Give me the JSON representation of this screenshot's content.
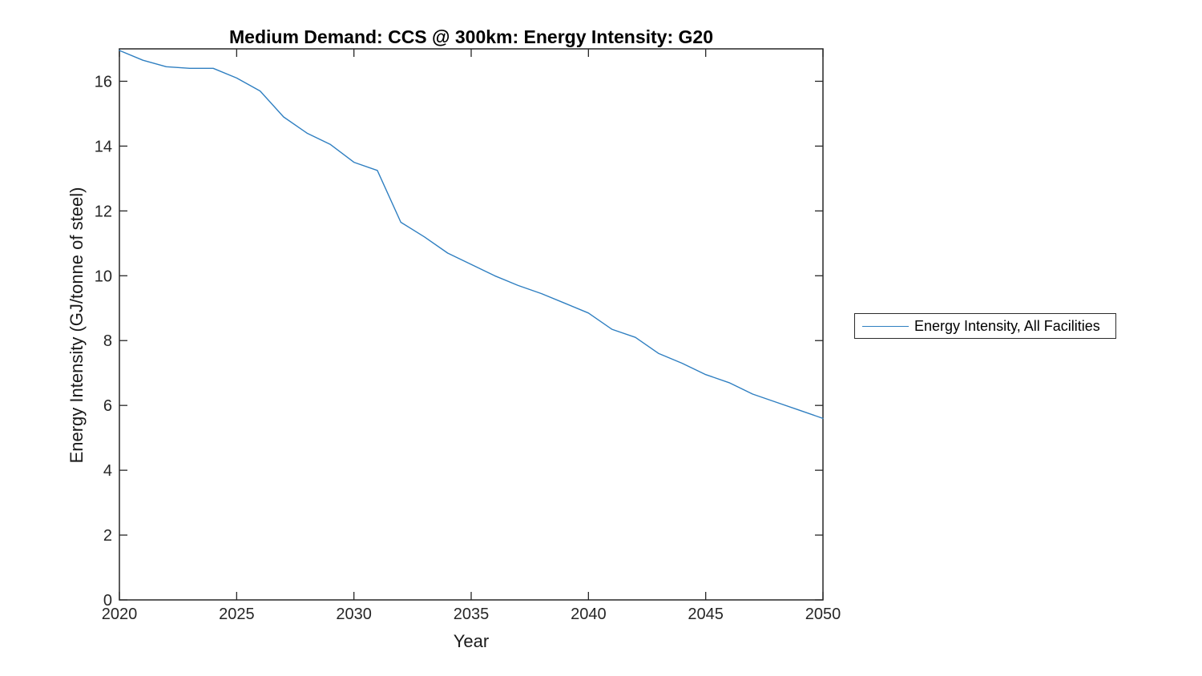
{
  "chart_data": {
    "type": "line",
    "title": "Medium Demand: CCS @ 300km: Energy Intensity: G20",
    "xlabel": "Year",
    "ylabel": "Energy Intensity (GJ/tonne of steel)",
    "xlim": [
      2020,
      2050
    ],
    "ylim": [
      0,
      17
    ],
    "x_ticks": [
      2020,
      2025,
      2030,
      2035,
      2040,
      2045,
      2050
    ],
    "y_ticks": [
      0,
      2,
      4,
      6,
      8,
      10,
      12,
      14,
      16
    ],
    "grid": false,
    "legend_position": "outside-right",
    "series": [
      {
        "name": "Energy Intensity, All Facilities",
        "color": "#2f7fc1",
        "x": [
          2020,
          2021,
          2022,
          2023,
          2024,
          2025,
          2026,
          2027,
          2028,
          2029,
          2030,
          2031,
          2032,
          2033,
          2034,
          2035,
          2036,
          2037,
          2038,
          2039,
          2040,
          2041,
          2042,
          2043,
          2044,
          2045,
          2046,
          2047,
          2048,
          2049,
          2050
        ],
        "values": [
          16.95,
          16.65,
          16.45,
          16.4,
          16.4,
          16.1,
          15.7,
          14.9,
          14.4,
          14.05,
          13.5,
          13.25,
          11.65,
          11.2,
          10.7,
          10.35,
          10.0,
          9.7,
          9.45,
          9.15,
          8.85,
          8.35,
          8.1,
          7.6,
          7.3,
          6.95,
          6.7,
          6.35,
          6.1,
          5.85,
          5.6
        ]
      }
    ]
  },
  "legend": {
    "entries": [
      {
        "label": "Energy Intensity, All Facilities",
        "color": "#2f7fc1"
      }
    ]
  },
  "colors": {
    "line": "#2f7fc1",
    "axis": "#262626",
    "background": "#ffffff"
  }
}
